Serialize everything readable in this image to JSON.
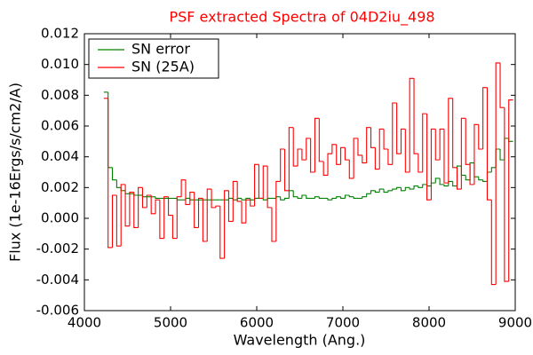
{
  "chart_data": {
    "type": "step",
    "title": "PSF extracted Spectra of 04D2iu_498",
    "title_color": "#ff0000",
    "xlabel": "Wavelength (Ang.)",
    "ylabel": "Flux (1e-16Ergs/s/cm2/A)",
    "xlim": [
      4000,
      9000
    ],
    "xticks": [
      4000,
      5000,
      6000,
      7000,
      8000,
      9000
    ],
    "ylim": [
      -0.006,
      0.012
    ],
    "yticks": [
      {
        "value": -0.006,
        "label": "-0.006"
      },
      {
        "value": -0.004,
        "label": "-0.004"
      },
      {
        "value": -0.002,
        "label": "-0.002"
      },
      {
        "value": 0,
        "label": "0.000"
      },
      {
        "value": 0.002,
        "label": "0.002"
      },
      {
        "value": 0.004,
        "label": "0.004"
      },
      {
        "value": 0.006,
        "label": "0.006"
      },
      {
        "value": 0.008,
        "label": "0.008"
      },
      {
        "value": 0.01,
        "label": "0.010"
      },
      {
        "value": 0.012,
        "label": "0.012"
      }
    ],
    "legend": "upper left",
    "x": [
      4250,
      4300,
      4350,
      4400,
      4450,
      4500,
      4550,
      4600,
      4650,
      4700,
      4750,
      4800,
      4850,
      4900,
      4950,
      5000,
      5050,
      5100,
      5150,
      5200,
      5250,
      5300,
      5350,
      5400,
      5450,
      5500,
      5550,
      5600,
      5650,
      5700,
      5750,
      5800,
      5850,
      5900,
      5950,
      6000,
      6050,
      6100,
      6150,
      6200,
      6250,
      6300,
      6350,
      6400,
      6450,
      6500,
      6550,
      6600,
      6650,
      6700,
      6750,
      6800,
      6850,
      6900,
      6950,
      7000,
      7050,
      7100,
      7150,
      7200,
      7250,
      7300,
      7350,
      7400,
      7450,
      7500,
      7550,
      7600,
      7650,
      7700,
      7750,
      7800,
      7850,
      7900,
      7950,
      8000,
      8050,
      8100,
      8150,
      8200,
      8250,
      8300,
      8350,
      8400,
      8450,
      8500,
      8550,
      8600,
      8650,
      8700,
      8750,
      8800,
      8850,
      8900,
      8950
    ],
    "series": [
      {
        "name": "SN error",
        "color": "#008000",
        "values": [
          0.0082,
          0.0033,
          0.0025,
          0.002,
          0.0018,
          0.0016,
          0.0016,
          0.0015,
          0.0015,
          0.0014,
          0.0014,
          0.0014,
          0.0013,
          0.0013,
          0.0013,
          0.0013,
          0.0013,
          0.0012,
          0.0012,
          0.0013,
          0.0012,
          0.0012,
          0.0012,
          0.0012,
          0.0012,
          0.0012,
          0.0012,
          0.0012,
          0.0012,
          0.0013,
          0.0012,
          0.0013,
          0.0012,
          0.0013,
          0.0012,
          0.0013,
          0.0013,
          0.0012,
          0.0013,
          0.0013,
          0.0014,
          0.0012,
          0.0013,
          0.0018,
          0.0014,
          0.0013,
          0.0015,
          0.0013,
          0.0013,
          0.0014,
          0.0013,
          0.0013,
          0.0012,
          0.0013,
          0.0014,
          0.0013,
          0.0015,
          0.0014,
          0.0013,
          0.0013,
          0.0014,
          0.0016,
          0.0018,
          0.0017,
          0.0019,
          0.0017,
          0.0018,
          0.0019,
          0.002,
          0.0018,
          0.002,
          0.0019,
          0.0021,
          0.002,
          0.0022,
          0.0021,
          0.0023,
          0.0026,
          0.0022,
          0.0021,
          0.0024,
          0.0021,
          0.0034,
          0.0028,
          0.0025,
          0.0036,
          0.0027,
          0.0025,
          0.0024,
          0.003,
          0.0033,
          0.0045,
          0.0038,
          0.0052,
          0.005
        ]
      },
      {
        "name": "SN (25A)",
        "color": "#ff0000",
        "values": [
          0.0078,
          -0.0019,
          0.0015,
          -0.0018,
          0.0022,
          -0.0005,
          0.0017,
          -0.0006,
          0.002,
          0.0007,
          0.0015,
          0.0003,
          0.0012,
          -0.0013,
          0.0014,
          0.0002,
          -0.0013,
          0.0014,
          0.0025,
          0.0009,
          0.0017,
          -0.0006,
          0.0013,
          -0.0015,
          0.0019,
          0.0007,
          0.0008,
          -0.0026,
          0.0018,
          -0.0002,
          0.0024,
          0.0011,
          -0.0003,
          0.0012,
          0.0008,
          0.0035,
          0.0013,
          0.0034,
          0.0007,
          -0.0015,
          0.0024,
          0.0045,
          0.0018,
          0.0059,
          0.0034,
          0.0045,
          0.0038,
          0.0052,
          0.003,
          0.0065,
          0.0037,
          0.0028,
          0.0042,
          0.0048,
          0.0035,
          0.0046,
          0.0038,
          0.0026,
          0.0052,
          0.0041,
          0.0036,
          0.0059,
          0.0046,
          0.0032,
          0.0058,
          0.0045,
          0.0035,
          0.0075,
          0.0042,
          0.0058,
          0.003,
          0.0091,
          0.0042,
          0.003,
          0.0068,
          0.0012,
          0.0058,
          0.0038,
          0.0058,
          0.0023,
          0.0078,
          0.0033,
          0.0019,
          0.0065,
          0.0035,
          0.0022,
          0.0061,
          0.0045,
          0.0085,
          0.0012,
          -0.0043,
          0.0101,
          0.0072,
          -0.0041,
          0.0077
        ]
      }
    ]
  }
}
